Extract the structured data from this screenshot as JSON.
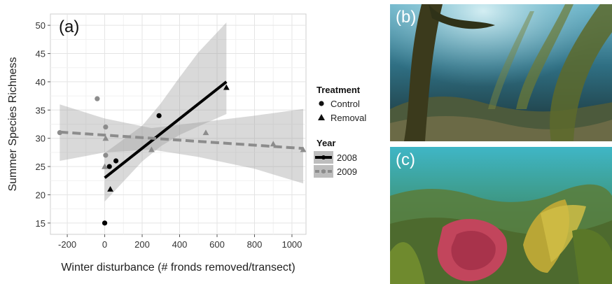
{
  "chart_data": {
    "type": "scatter",
    "panel_label": "(a)",
    "xlabel": "Winter disturbance (# fronds removed/transect)",
    "ylabel": "Summer Species Richness",
    "xlim": [
      -290,
      1075
    ],
    "ylim": [
      13,
      52
    ],
    "x_ticks": [
      -200,
      0,
      200,
      400,
      600,
      800,
      1000
    ],
    "y_ticks": [
      15,
      20,
      25,
      30,
      35,
      40,
      45,
      50
    ],
    "grid": true,
    "legend": {
      "placement": "right",
      "treatment_title": "Treatment",
      "treatment_items": [
        {
          "label": "Control",
          "shape": "circle"
        },
        {
          "label": "Removal",
          "shape": "triangle"
        }
      ],
      "year_title": "Year",
      "year_items": [
        {
          "label": "2008",
          "color": "#000000",
          "style": "solid"
        },
        {
          "label": "2009",
          "color": "#8c8c8c",
          "style": "dashed"
        }
      ]
    },
    "series": [
      {
        "name": "2008",
        "color": "#000000",
        "points": [
          {
            "x": 0,
            "y": 15,
            "treatment": "Control"
          },
          {
            "x": 25,
            "y": 25,
            "treatment": "Control"
          },
          {
            "x": 60,
            "y": 26,
            "treatment": "Control"
          },
          {
            "x": 290,
            "y": 34,
            "treatment": "Control"
          },
          {
            "x": 30,
            "y": 21,
            "treatment": "Removal"
          },
          {
            "x": 650,
            "y": 39,
            "treatment": "Removal"
          }
        ],
        "fit": {
          "x0": 0,
          "y0": 23,
          "x1": 650,
          "y1": 40
        },
        "band": [
          {
            "x": 0,
            "lo": 18.8,
            "hi": 27.4
          },
          {
            "x": 200,
            "lo": 25.9,
            "hi": 32.2
          },
          {
            "x": 300,
            "lo": 28.6,
            "hi": 36.2
          },
          {
            "x": 400,
            "lo": 30.6,
            "hi": 40.8
          },
          {
            "x": 500,
            "lo": 32.1,
            "hi": 45.2
          },
          {
            "x": 650,
            "lo": 34.3,
            "hi": 50.5
          }
        ]
      },
      {
        "name": "2009",
        "color": "#8c8c8c",
        "points": [
          {
            "x": -240,
            "y": 31,
            "treatment": "Control"
          },
          {
            "x": -40,
            "y": 37,
            "treatment": "Control"
          },
          {
            "x": 5,
            "y": 32,
            "treatment": "Control"
          },
          {
            "x": 5,
            "y": 27,
            "treatment": "Control"
          },
          {
            "x": 5,
            "y": 30,
            "treatment": "Removal"
          },
          {
            "x": 0,
            "y": 25,
            "treatment": "Removal"
          },
          {
            "x": 250,
            "y": 28,
            "treatment": "Removal"
          },
          {
            "x": 540,
            "y": 31,
            "treatment": "Removal"
          },
          {
            "x": 900,
            "y": 29,
            "treatment": "Removal"
          },
          {
            "x": 1060,
            "y": 28,
            "treatment": "Removal"
          }
        ],
        "fit": {
          "x0": -240,
          "y0": 31.1,
          "x1": 1060,
          "y1": 28.2
        },
        "band": [
          {
            "x": -240,
            "lo": 26,
            "hi": 36
          },
          {
            "x": 0,
            "lo": 27.5,
            "hi": 33.5
          },
          {
            "x": 250,
            "lo": 28,
            "hi": 31.8
          },
          {
            "x": 500,
            "lo": 26.7,
            "hi": 32.8
          },
          {
            "x": 800,
            "lo": 24.6,
            "hi": 34
          },
          {
            "x": 1060,
            "lo": 22,
            "hi": 35.2
          }
        ]
      }
    ]
  },
  "photos": [
    {
      "label": "(b)",
      "description_icon": "kelp-forest-photo"
    },
    {
      "label": "(c)",
      "description_icon": "reef-algae-photo"
    }
  ]
}
